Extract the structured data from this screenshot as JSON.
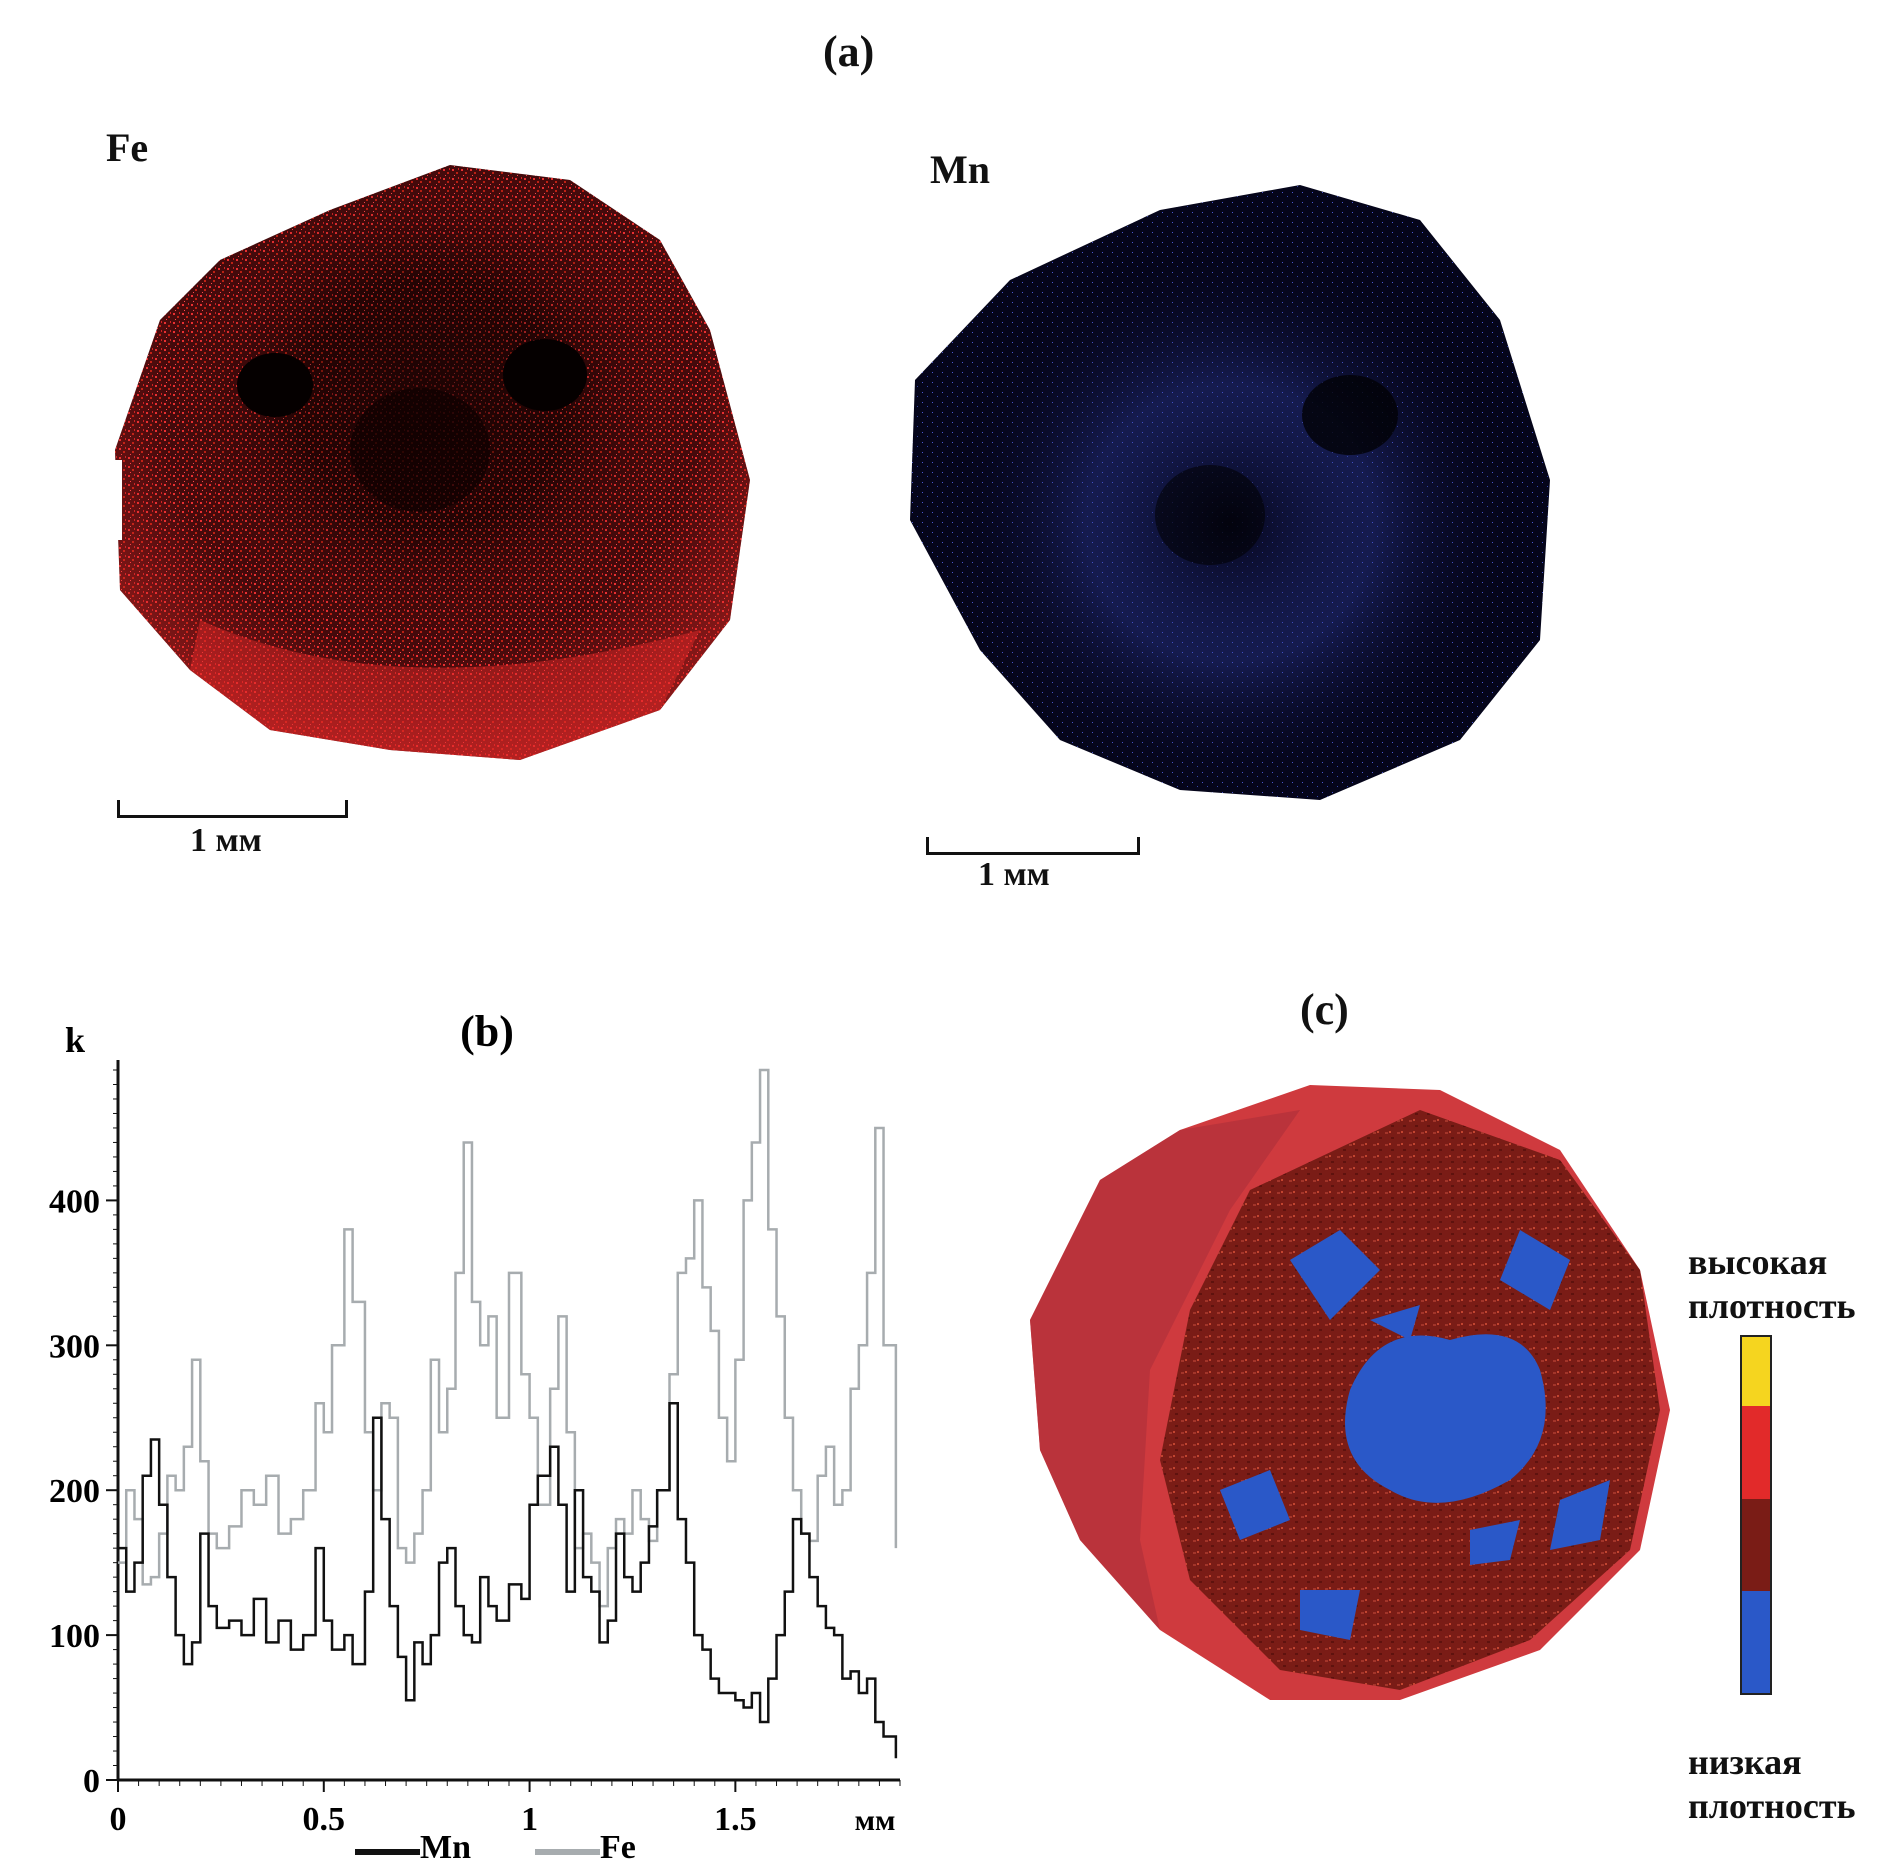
{
  "figure": {
    "panel_a": {
      "label": "(a)",
      "map_fe": {
        "element": "Fe",
        "color": "#d8222a",
        "scale_label": "1 мм"
      },
      "map_mn": {
        "element": "Mn",
        "color": "#3b4fb8",
        "scale_label": "1 мм"
      }
    },
    "panel_b": {
      "label": "(b)"
    },
    "panel_c": {
      "label": "(c)",
      "legend": {
        "top_line1": "высокая",
        "top_line2": "плотность",
        "bottom_line1": "низкая",
        "bottom_line2": "плотность",
        "colors": [
          "#f5d51f",
          "#e22a2a",
          "#7a1c16",
          "#2a58c8"
        ]
      }
    }
  },
  "chart_data": {
    "type": "line",
    "title": "(b)",
    "xlabel": "мм",
    "ylabel": "k",
    "xlim": [
      0,
      1.9
    ],
    "ylim": [
      0,
      490
    ],
    "xticks": [
      0,
      0.5,
      1,
      1.5
    ],
    "xtick_labels": [
      "0",
      "0.5",
      "1",
      "1.5"
    ],
    "yticks": [
      0,
      100,
      200,
      300,
      400
    ],
    "ytick_labels": [
      "0",
      "100",
      "200",
      "300",
      "400"
    ],
    "legend_position": "bottom",
    "series": [
      {
        "name": "Mn",
        "color": "#111111",
        "x": [
          0,
          0.02,
          0.04,
          0.06,
          0.08,
          0.1,
          0.12,
          0.14,
          0.16,
          0.18,
          0.2,
          0.22,
          0.24,
          0.27,
          0.3,
          0.33,
          0.36,
          0.39,
          0.42,
          0.45,
          0.48,
          0.5,
          0.52,
          0.55,
          0.57,
          0.6,
          0.62,
          0.64,
          0.66,
          0.68,
          0.7,
          0.72,
          0.74,
          0.76,
          0.78,
          0.8,
          0.82,
          0.84,
          0.86,
          0.88,
          0.9,
          0.92,
          0.95,
          0.98,
          1.0,
          1.02,
          1.05,
          1.07,
          1.09,
          1.11,
          1.13,
          1.15,
          1.17,
          1.19,
          1.21,
          1.23,
          1.25,
          1.27,
          1.29,
          1.31,
          1.34,
          1.36,
          1.38,
          1.4,
          1.42,
          1.44,
          1.46,
          1.48,
          1.5,
          1.52,
          1.54,
          1.56,
          1.58,
          1.6,
          1.62,
          1.64,
          1.66,
          1.68,
          1.7,
          1.72,
          1.74,
          1.76,
          1.78,
          1.8,
          1.82,
          1.84,
          1.86,
          1.89
        ],
        "values": [
          160,
          130,
          150,
          210,
          235,
          190,
          140,
          100,
          80,
          95,
          170,
          120,
          105,
          110,
          100,
          125,
          95,
          110,
          90,
          100,
          160,
          110,
          90,
          100,
          80,
          130,
          250,
          180,
          120,
          85,
          55,
          95,
          80,
          100,
          150,
          160,
          120,
          100,
          95,
          140,
          120,
          110,
          135,
          125,
          190,
          210,
          230,
          190,
          130,
          200,
          140,
          130,
          95,
          110,
          170,
          140,
          130,
          150,
          175,
          200,
          260,
          180,
          150,
          100,
          90,
          70,
          60,
          60,
          55,
          50,
          60,
          40,
          70,
          100,
          130,
          180,
          170,
          140,
          120,
          105,
          100,
          70,
          75,
          60,
          70,
          40,
          30,
          15
        ]
      },
      {
        "name": "Fe",
        "color": "#a7acaf",
        "x": [
          0,
          0.02,
          0.04,
          0.06,
          0.08,
          0.1,
          0.12,
          0.14,
          0.16,
          0.18,
          0.2,
          0.22,
          0.24,
          0.27,
          0.3,
          0.33,
          0.36,
          0.39,
          0.42,
          0.45,
          0.48,
          0.5,
          0.52,
          0.55,
          0.57,
          0.6,
          0.62,
          0.64,
          0.66,
          0.68,
          0.7,
          0.72,
          0.74,
          0.76,
          0.78,
          0.8,
          0.82,
          0.84,
          0.86,
          0.88,
          0.9,
          0.92,
          0.95,
          0.98,
          1.0,
          1.02,
          1.05,
          1.07,
          1.09,
          1.11,
          1.13,
          1.15,
          1.17,
          1.19,
          1.21,
          1.23,
          1.25,
          1.27,
          1.29,
          1.31,
          1.34,
          1.36,
          1.38,
          1.4,
          1.42,
          1.44,
          1.46,
          1.48,
          1.5,
          1.52,
          1.54,
          1.56,
          1.58,
          1.6,
          1.62,
          1.64,
          1.66,
          1.68,
          1.7,
          1.72,
          1.74,
          1.76,
          1.78,
          1.8,
          1.82,
          1.84,
          1.86,
          1.89
        ],
        "values": [
          150,
          200,
          180,
          135,
          140,
          170,
          210,
          200,
          230,
          290,
          220,
          170,
          160,
          175,
          200,
          190,
          210,
          170,
          180,
          200,
          260,
          240,
          300,
          380,
          330,
          240,
          200,
          260,
          250,
          160,
          150,
          170,
          200,
          290,
          240,
          270,
          350,
          440,
          330,
          300,
          320,
          250,
          350,
          280,
          250,
          190,
          270,
          320,
          240,
          160,
          170,
          150,
          120,
          160,
          180,
          170,
          200,
          180,
          165,
          200,
          280,
          350,
          360,
          400,
          340,
          310,
          250,
          220,
          290,
          400,
          440,
          490,
          380,
          320,
          250,
          200,
          170,
          165,
          210,
          230,
          190,
          200,
          270,
          300,
          350,
          450,
          300,
          160
        ]
      }
    ]
  }
}
